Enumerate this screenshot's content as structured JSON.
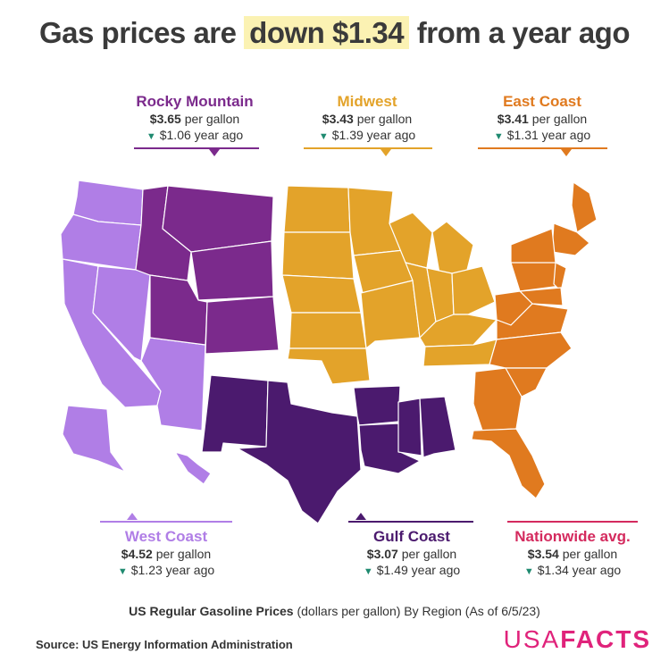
{
  "title": {
    "pre": "Gas prices are",
    "highlight": "down $1.34",
    "post": "from a year ago"
  },
  "unit": "per gallon",
  "regions": {
    "rocky": {
      "name": "Rocky Mountain",
      "price": "$3.65",
      "year_ago": "$1.06 year ago",
      "color": "#7b2a8c"
    },
    "midwest": {
      "name": "Midwest",
      "price": "$3.43",
      "year_ago": "$1.39 year ago",
      "color": "#e3a32a"
    },
    "east": {
      "name": "East Coast",
      "price": "$3.41",
      "year_ago": "$1.31 year ago",
      "color": "#e07a1f"
    },
    "west": {
      "name": "West Coast",
      "price": "$4.52",
      "year_ago": "$1.23 year ago",
      "color": "#b07ee6"
    },
    "gulf": {
      "name": "Gulf Coast",
      "price": "$3.07",
      "year_ago": "$1.49 year ago",
      "color": "#4b1a6e"
    },
    "nation": {
      "name": "Nationwide avg.",
      "price": "$3.54",
      "year_ago": "$1.34 year ago",
      "color": "#d42a5e"
    }
  },
  "subtitle": {
    "bold": "US Regular Gasoline Prices",
    "rest": "(dollars per gallon) By Region (As of 6/5/23)"
  },
  "source": "Source: US Energy Information Administration",
  "logo": {
    "a": "USA",
    "b": "FACTS"
  }
}
